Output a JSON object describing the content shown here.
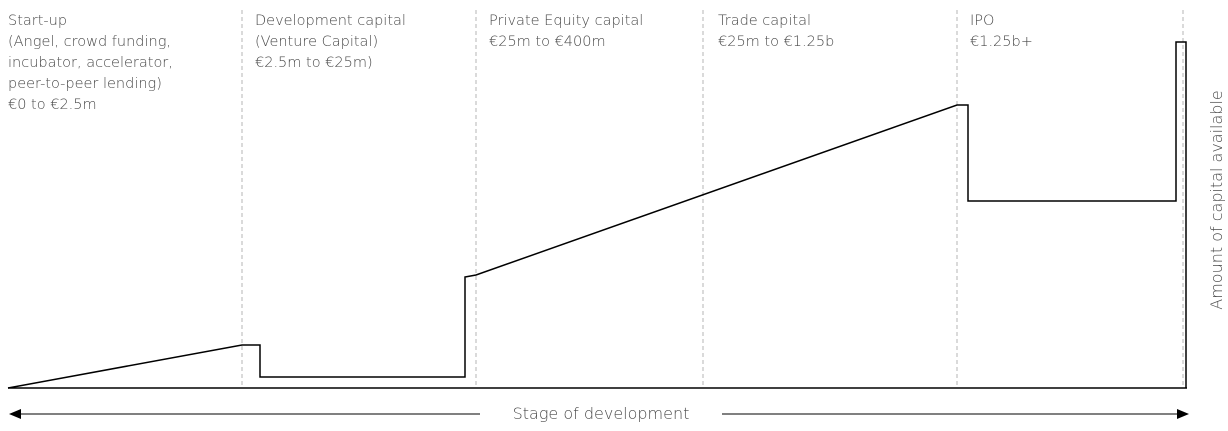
{
  "stages": [
    {
      "lines": [
        "Start-up",
        "(Angel, crowd funding,",
        "incubator, accelerator,",
        "peer-to-peer lending)",
        "€0 to €2.5m"
      ]
    },
    {
      "lines": [
        "Development capital",
        "(Venture Capital)",
        "€2.5m to €25m)"
      ]
    },
    {
      "lines": [
        "Private Equity capital",
        "€25m to €400m"
      ]
    },
    {
      "lines": [
        "Trade capital",
        "€25m to €1.25b"
      ]
    },
    {
      "lines": [
        "IPO",
        "€1.25b+"
      ]
    }
  ],
  "x_axis_label": "Stage of development",
  "y_axis_label": "Amount of capital available"
}
